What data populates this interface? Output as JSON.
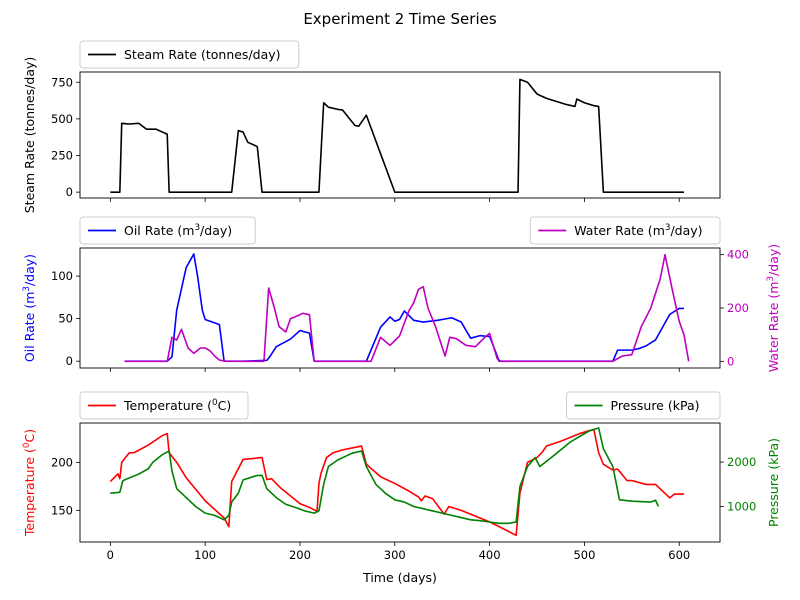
{
  "chart_data": {
    "type": "line",
    "title": "Experiment 2 Time Series",
    "xlabel": "Time (days)",
    "xlim": [
      -32,
      643
    ],
    "xticks": [
      0,
      100,
      200,
      300,
      400,
      500,
      600
    ],
    "grid": false,
    "panels": [
      {
        "id": "steam",
        "ylim": [
          -40,
          820
        ],
        "yticks": [
          0,
          250,
          500,
          750
        ],
        "left_axis": {
          "label": "Steam Rate (tonnes/day)",
          "color": "#000000",
          "series": [
            {
              "name": "Steam Rate (tonnes/day)",
              "color": "#000000",
              "legend": "top-left",
              "x": [
                0,
                10,
                12,
                20,
                30,
                38,
                48,
                55,
                60,
                62,
                80,
                100,
                120,
                125,
                128,
                135,
                140,
                145,
                152,
                155,
                160,
                175,
                200,
                218,
                220,
                225,
                230,
                240,
                245,
                258,
                262,
                270,
                300,
                350,
                400,
                430,
                432,
                440,
                450,
                460,
                480,
                490,
                492,
                500,
                510,
                515,
                520,
                550,
                580,
                605
              ],
              "values": [
                0,
                0,
                470,
                465,
                470,
                430,
                430,
                410,
                395,
                0,
                0,
                0,
                0,
                0,
                0,
                420,
                410,
                340,
                320,
                310,
                0,
                0,
                0,
                0,
                0,
                610,
                580,
                565,
                560,
                455,
                450,
                525,
                0,
                0,
                0,
                0,
                770,
                750,
                670,
                640,
                600,
                585,
                635,
                610,
                590,
                585,
                0,
                0,
                0,
                0
              ]
            }
          ]
        }
      },
      {
        "id": "oil-water",
        "ylim": [
          -8,
          133
        ],
        "yticks": [
          0,
          50,
          100
        ],
        "left_axis": {
          "label": "Oil Rate ($m^3$/day)",
          "color": "#0000ff",
          "series": [
            {
              "name": "Oil Rate ($m^3$/day)",
              "color": "#0000ff",
              "legend": "top-left",
              "x": [
                15,
                60,
                65,
                70,
                80,
                88,
                92,
                97,
                100,
                110,
                115,
                120,
                140,
                165,
                168,
                175,
                190,
                200,
                210,
                215,
                240,
                265,
                270,
                285,
                295,
                300,
                305,
                310,
                320,
                330,
                345,
                355,
                360,
                370,
                380,
                390,
                400,
                405,
                410,
                440,
                480,
                530,
                535,
                545,
                550,
                558,
                565,
                575,
                590,
                600,
                605
              ],
              "values": [
                0,
                0,
                5,
                60,
                110,
                126,
                100,
                60,
                49,
                45,
                43,
                0,
                0,
                1,
                5,
                17,
                26,
                36,
                33,
                0,
                0,
                0,
                0,
                40,
                52,
                47,
                49,
                59,
                48,
                46,
                48,
                50,
                51,
                46,
                27,
                30,
                29,
                15,
                0,
                0,
                0,
                0,
                13,
                13,
                13,
                15,
                18,
                25,
                55,
                62,
                62
              ]
            }
          ]
        },
        "right_axis": {
          "label": "Water Rate ($m^3$/day)",
          "color": "#bf00bf",
          "ylim": [
            -25,
            425
          ],
          "yticks": [
            0,
            200,
            400
          ],
          "series": [
            {
              "name": "Water Rate ($m^3$/day)",
              "color": "#bf00bf",
              "legend": "top-right",
              "x": [
                15,
                60,
                65,
                70,
                75,
                82,
                88,
                95,
                100,
                105,
                110,
                115,
                122,
                162,
                167,
                173,
                178,
                185,
                190,
                197,
                203,
                210,
                215,
                240,
                275,
                285,
                295,
                305,
                315,
                320,
                325,
                330,
                335,
                343,
                353,
                358,
                365,
                375,
                385,
                395,
                400,
                408,
                412,
                450,
                530,
                540,
                550,
                560,
                570,
                580,
                585,
                592,
                600,
                605,
                610
              ],
              "values": [
                0,
                0,
                90,
                80,
                120,
                50,
                30,
                50,
                50,
                40,
                20,
                5,
                0,
                0,
                275,
                200,
                130,
                110,
                160,
                170,
                180,
                175,
                0,
                0,
                0,
                90,
                60,
                95,
                190,
                220,
                270,
                280,
                200,
                130,
                20,
                90,
                85,
                60,
                55,
                90,
                105,
                10,
                0,
                0,
                0,
                20,
                25,
                130,
                200,
                310,
                400,
                280,
                150,
                100,
                0
              ]
            }
          ]
        }
      },
      {
        "id": "temp-pressure",
        "ylim": [
          117,
          241
        ],
        "yticks": [
          150,
          200
        ],
        "left_axis": {
          "label": "Temperature ($^0C$)",
          "color": "#ff0000",
          "series": [
            {
              "name": "Temperature ($^0C$)",
              "color": "#ff0000",
              "legend": "top-left",
              "x": [
                0,
                5,
                8,
                10,
                12,
                20,
                25,
                40,
                55,
                60,
                62,
                70,
                80,
                100,
                120,
                125,
                128,
                140,
                160,
                165,
                170,
                180,
                200,
                210,
                218,
                220,
                222,
                228,
                235,
                245,
                255,
                265,
                270,
                285,
                300,
                315,
                325,
                328,
                332,
                340,
                352,
                357,
                370,
                400,
                428,
                432,
                440,
                450,
                455,
                460,
                475,
                495,
                505,
                510,
                515,
                520,
                530,
                535,
                545,
                550,
                565,
                575,
                590,
                595,
                605
              ],
              "values": [
                180,
                185,
                188,
                183,
                200,
                210,
                210,
                218,
                228,
                230,
                210,
                200,
                184,
                160,
                142,
                133,
                180,
                203,
                205,
                182,
                183,
                173,
                157,
                153,
                149,
                178,
                188,
                205,
                210,
                213,
                215,
                217,
                198,
                185,
                178,
                170,
                164,
                160,
                165,
                162,
                146,
                154,
                150,
                138,
                124,
                168,
                200,
                205,
                210,
                217,
                222,
                230,
                233,
                234,
                210,
                198,
                192,
                193,
                181,
                181,
                177,
                177,
                163,
                167,
                167
              ]
            }
          ]
        },
        "right_axis": {
          "label": "Pressure (kPa)",
          "color": "#008000",
          "ylim": [
            200,
            2880
          ],
          "yticks": [
            1000,
            2000
          ],
          "series": [
            {
              "name": "Pressure (kPa)",
              "color": "#008000",
              "legend": "top-right",
              "x": [
                0,
                10,
                13,
                15,
                30,
                40,
                45,
                55,
                62,
                65,
                70,
                80,
                90,
                100,
                110,
                120,
                125,
                128,
                135,
                140,
                155,
                160,
                165,
                175,
                185,
                195,
                205,
                215,
                220,
                225,
                230,
                240,
                255,
                265,
                270,
                280,
                290,
                300,
                310,
                320,
                330,
                340,
                350,
                360,
                370,
                380,
                390,
                400,
                410,
                420,
                428,
                432,
                440,
                448,
                453,
                465,
                485,
                505,
                515,
                520,
                530,
                537,
                550,
                570,
                575,
                578
              ],
              "values": [
                1300,
                1320,
                1570,
                1600,
                1730,
                1850,
                2000,
                2170,
                2250,
                1800,
                1400,
                1200,
                1000,
                850,
                800,
                700,
                800,
                1100,
                1300,
                1600,
                1700,
                1700,
                1400,
                1200,
                1050,
                980,
                900,
                850,
                900,
                1500,
                1900,
                2050,
                2200,
                2250,
                1900,
                1500,
                1300,
                1150,
                1100,
                1000,
                950,
                900,
                850,
                800,
                750,
                700,
                680,
                650,
                620,
                620,
                650,
                1450,
                1900,
                2100,
                1900,
                2100,
                2450,
                2700,
                2770,
                2300,
                1900,
                1150,
                1120,
                1100,
                1140,
                1000
              ]
            }
          ]
        }
      }
    ]
  }
}
